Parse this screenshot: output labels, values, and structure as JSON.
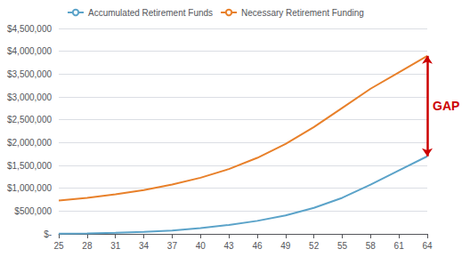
{
  "chart_data": {
    "type": "line",
    "x": [
      25,
      28,
      31,
      34,
      37,
      40,
      43,
      46,
      49,
      52,
      55,
      58,
      61,
      64
    ],
    "xlim": [
      25,
      64
    ],
    "xticks": [
      25,
      28,
      31,
      34,
      37,
      40,
      43,
      46,
      49,
      52,
      55,
      58,
      61,
      64
    ],
    "ylim": [
      0,
      4500000
    ],
    "yticks": [
      {
        "value": 0,
        "label": "$-"
      },
      {
        "value": 500000,
        "label": "$500,000"
      },
      {
        "value": 1000000,
        "label": "$1,000,000"
      },
      {
        "value": 1500000,
        "label": "$1,500,000"
      },
      {
        "value": 2000000,
        "label": "$2,000,000"
      },
      {
        "value": 2500000,
        "label": "$2,500,000"
      },
      {
        "value": 3000000,
        "label": "$3,000,000"
      },
      {
        "value": 3500000,
        "label": "$3,500,000"
      },
      {
        "value": 4000000,
        "label": "$4,000,000"
      },
      {
        "value": 4500000,
        "label": "$4,500,000"
      }
    ],
    "grid": true,
    "legend": "upper left",
    "series": [
      {
        "name": "Accumulated Retirement Funds",
        "color": "#5BA3C9",
        "values": [
          3000,
          10000,
          22000,
          42000,
          75000,
          125000,
          195000,
          285000,
          405000,
          570000,
          790000,
          1080000,
          1390000,
          1700000
        ]
      },
      {
        "name": "Necessary Retirement Funding",
        "color": "#E8802A",
        "values": [
          730000,
          790000,
          865000,
          960000,
          1080000,
          1230000,
          1420000,
          1665000,
          1970000,
          2340000,
          2760000,
          3180000,
          3540000,
          3900000
        ]
      }
    ],
    "annotations": [
      {
        "text": "GAP",
        "color": "#CC0000"
      }
    ]
  }
}
